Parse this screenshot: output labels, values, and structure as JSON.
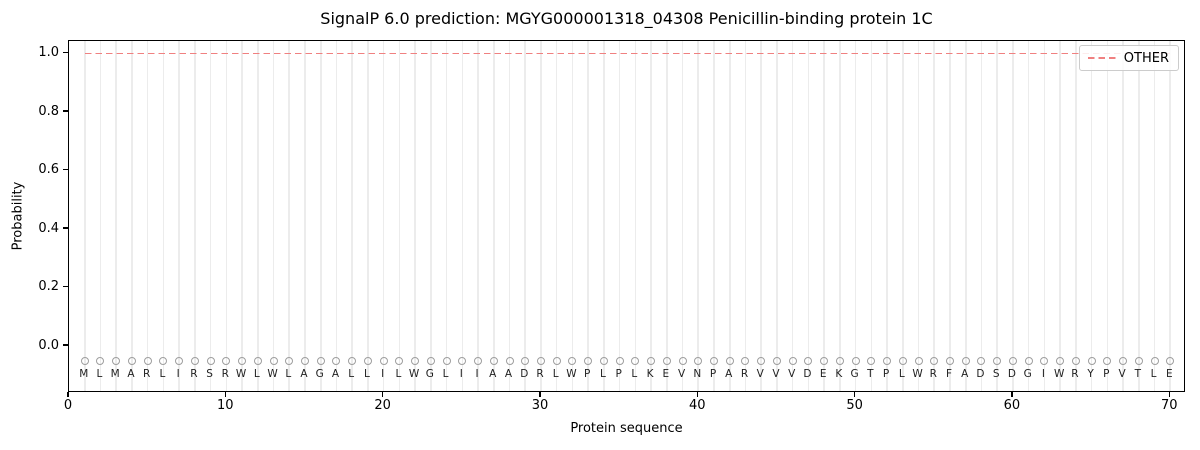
{
  "figure": {
    "title": "SignalP 6.0 prediction: MGYG000001318_04308 Penicillin-binding protein 1C",
    "xlabel": "Protein sequence",
    "ylabel": "Probability",
    "legend": {
      "label": "OTHER"
    }
  },
  "chart_data": {
    "type": "line",
    "title": "SignalP 6.0 prediction: MGYG000001318_04308 Penicillin-binding protein 1C",
    "xlabel": "Protein sequence",
    "ylabel": "Probability",
    "xlim": [
      0,
      71
    ],
    "ylim": [
      -0.16,
      1.04
    ],
    "x_ticks": [
      {
        "value": 0,
        "label": "0"
      },
      {
        "value": 10,
        "label": "10"
      },
      {
        "value": 20,
        "label": "20"
      },
      {
        "value": 30,
        "label": "30"
      },
      {
        "value": 40,
        "label": "40"
      },
      {
        "value": 50,
        "label": "50"
      },
      {
        "value": 60,
        "label": "60"
      },
      {
        "value": 70,
        "label": "70"
      }
    ],
    "y_ticks": [
      {
        "value": 0.0,
        "label": "0.0"
      },
      {
        "value": 0.2,
        "label": "0.2"
      },
      {
        "value": 0.4,
        "label": "0.4"
      },
      {
        "value": 0.6,
        "label": "0.6"
      },
      {
        "value": 0.8,
        "label": "0.8"
      },
      {
        "value": 1.0,
        "label": "1.0"
      }
    ],
    "grid": "vertical gridline at each residue position 1-70",
    "legend_position": "upper right",
    "series": [
      {
        "name": "OTHER",
        "color": "#f08080",
        "linestyle": "dashed",
        "x_start": 1,
        "x_end": 70,
        "y_constant": 1.0
      }
    ],
    "residue_markers": {
      "shape": "open-circle",
      "y": -0.05
    },
    "sequence_y": -0.1,
    "sequence": [
      "M",
      "L",
      "M",
      "A",
      "R",
      "L",
      "I",
      "R",
      "S",
      "R",
      "W",
      "L",
      "W",
      "L",
      "A",
      "G",
      "A",
      "L",
      "L",
      "I",
      "L",
      "W",
      "G",
      "L",
      "I",
      "I",
      "A",
      "A",
      "D",
      "R",
      "L",
      "W",
      "P",
      "L",
      "P",
      "L",
      "K",
      "E",
      "V",
      "N",
      "P",
      "A",
      "R",
      "V",
      "V",
      "V",
      "D",
      "E",
      "K",
      "G",
      "T",
      "P",
      "L",
      "W",
      "R",
      "F",
      "A",
      "D",
      "S",
      "D",
      "G",
      "I",
      "W",
      "R",
      "Y",
      "P",
      "V",
      "T",
      "L",
      "E"
    ]
  },
  "colors": {
    "other_line": "#f08080",
    "gridline": "#ececec",
    "marker_outline": "#9e9e9e",
    "sequence_letter": "#1f1f1f",
    "axes": "#000000",
    "legend_border": "#cccccc",
    "background": "#ffffff"
  }
}
